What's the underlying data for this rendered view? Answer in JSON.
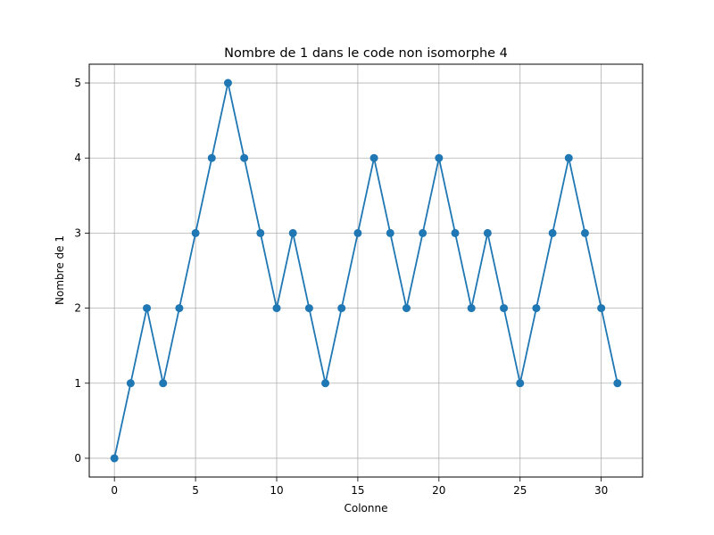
{
  "chart_data": {
    "type": "line",
    "title": "Nombre de 1 dans le code non isomorphe 4",
    "xlabel": "Colonne",
    "ylabel": "Nombre de 1",
    "xlim": [
      -1.55,
      32.55
    ],
    "ylim": [
      -0.25,
      5.25
    ],
    "xticks": [
      0,
      5,
      10,
      15,
      20,
      25,
      30
    ],
    "yticks": [
      0,
      1,
      2,
      3,
      4,
      5
    ],
    "grid": true,
    "markers": true,
    "color": "#1f77b4",
    "x": [
      0,
      1,
      2,
      3,
      4,
      5,
      6,
      7,
      8,
      9,
      10,
      11,
      12,
      13,
      14,
      15,
      16,
      17,
      18,
      19,
      20,
      21,
      22,
      23,
      24,
      25,
      26,
      27,
      28,
      29,
      30,
      31
    ],
    "y": [
      0,
      1,
      2,
      1,
      2,
      3,
      4,
      5,
      4,
      3,
      2,
      3,
      2,
      1,
      2,
      3,
      4,
      3,
      2,
      3,
      4,
      3,
      2,
      3,
      2,
      1,
      2,
      3,
      4,
      3,
      2,
      1
    ]
  }
}
